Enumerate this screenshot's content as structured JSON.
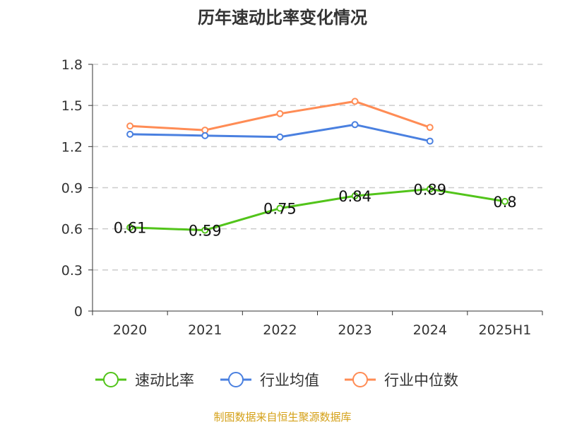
{
  "chart_data": {
    "type": "line",
    "title": "历年速动比率变化情况",
    "categories": [
      "2020",
      "2021",
      "2022",
      "2023",
      "2024",
      "2025H1"
    ],
    "yticks": [
      "0",
      "0.3",
      "0.6",
      "0.9",
      "1.2",
      "1.5",
      "1.8"
    ],
    "ylim": [
      0,
      1.8
    ],
    "grid": true,
    "legend_position": "bottom",
    "series": [
      {
        "name": "速动比率",
        "color": "#52c41a",
        "values": [
          0.61,
          0.59,
          0.75,
          0.84,
          0.89,
          0.8
        ],
        "labels": [
          "0.61",
          "0.59",
          "0.75",
          "0.84",
          "0.89",
          "0.8"
        ]
      },
      {
        "name": "行业均值",
        "color": "#4a80e0",
        "values": [
          1.29,
          1.28,
          1.27,
          1.36,
          1.24,
          null
        ]
      },
      {
        "name": "行业中位数",
        "color": "#ff8c55",
        "values": [
          1.35,
          1.32,
          1.44,
          1.53,
          1.34,
          null
        ]
      }
    ]
  },
  "footer": {
    "source": "制图数据来自恒生聚源数据库",
    "color": "#d4a017"
  }
}
